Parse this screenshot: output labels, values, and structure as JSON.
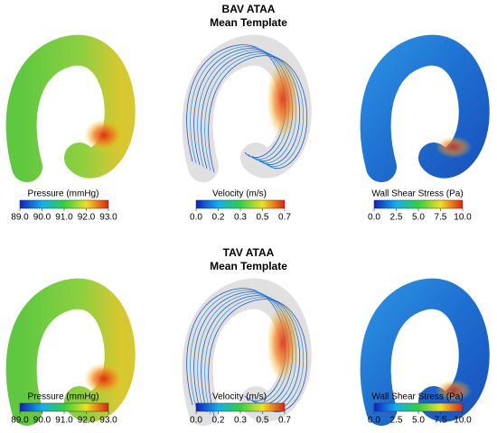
{
  "rows": [
    {
      "title": "BAV ATAA",
      "subtitle": "Mean Template",
      "panels": [
        {
          "label": "Pressure (mmHg)",
          "ticks": [
            "89.0",
            "90.0",
            "91.0",
            "92.0",
            "93.0"
          ]
        },
        {
          "label": "Velocity (m/s)",
          "ticks": [
            "0.0",
            "0.2",
            "0.3",
            "0.5",
            "0.7"
          ]
        },
        {
          "label": "Wall Shear Stress (Pa)",
          "ticks": [
            "0.0",
            "2.5",
            "5.0",
            "7.5",
            "10.0"
          ]
        }
      ]
    },
    {
      "title": "TAV ATAA",
      "subtitle": "Mean Template",
      "panels": [
        {
          "label": "Pressure (mmHg)",
          "ticks": [
            "89.0",
            "90.0",
            "91.0",
            "92.0",
            "93.0"
          ]
        },
        {
          "label": "Velocity (m/s)",
          "ticks": [
            "0.0",
            "0.2",
            "0.3",
            "0.5",
            "0.7"
          ]
        },
        {
          "label": "Wall Shear Stress (Pa)",
          "ticks": [
            "0.0",
            "2.5",
            "5.0",
            "7.5",
            "10.0"
          ]
        }
      ]
    }
  ]
}
